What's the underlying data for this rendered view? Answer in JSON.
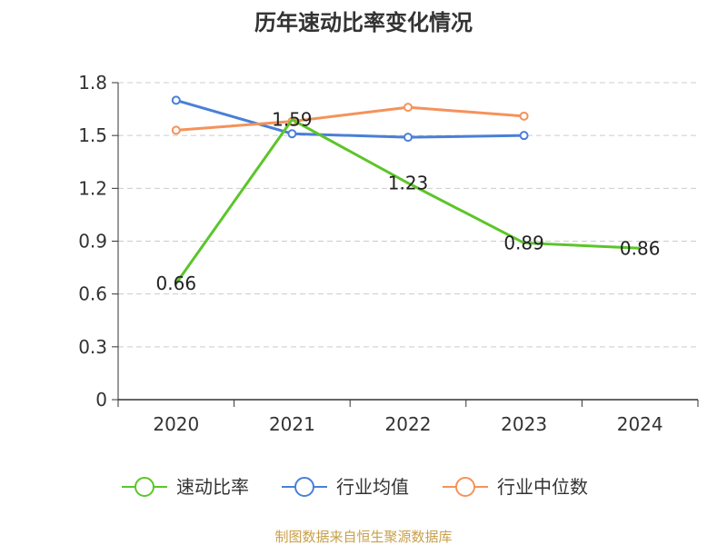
{
  "chart_data": {
    "type": "line",
    "title": "历年速动比率变化情况",
    "categories": [
      "2020",
      "2021",
      "2022",
      "2023",
      "2024"
    ],
    "ylim": [
      0,
      1.8
    ],
    "yticks": [
      "0",
      "0.3",
      "0.6",
      "0.9",
      "1.2",
      "1.5",
      "1.8"
    ],
    "ytick_values": [
      0,
      0.3,
      0.6,
      0.9,
      1.2,
      1.5,
      1.8
    ],
    "grid": true,
    "legend_position": "bottom",
    "series": [
      {
        "name": "速动比率",
        "color": "#5cc52a",
        "show_labels": true,
        "values": [
          0.66,
          1.59,
          1.23,
          0.89,
          0.86
        ],
        "labels": [
          "0.66",
          "1.59",
          "1.23",
          "0.89",
          "0.86"
        ]
      },
      {
        "name": "行业均值",
        "color": "#4a7fd8",
        "show_labels": false,
        "values": [
          1.7,
          1.51,
          1.49,
          1.5,
          null
        ]
      },
      {
        "name": "行业中位数",
        "color": "#f5925a",
        "show_labels": false,
        "values": [
          1.53,
          1.58,
          1.66,
          1.61,
          null
        ]
      }
    ]
  },
  "source": "制图数据来自恒生聚源数据库"
}
